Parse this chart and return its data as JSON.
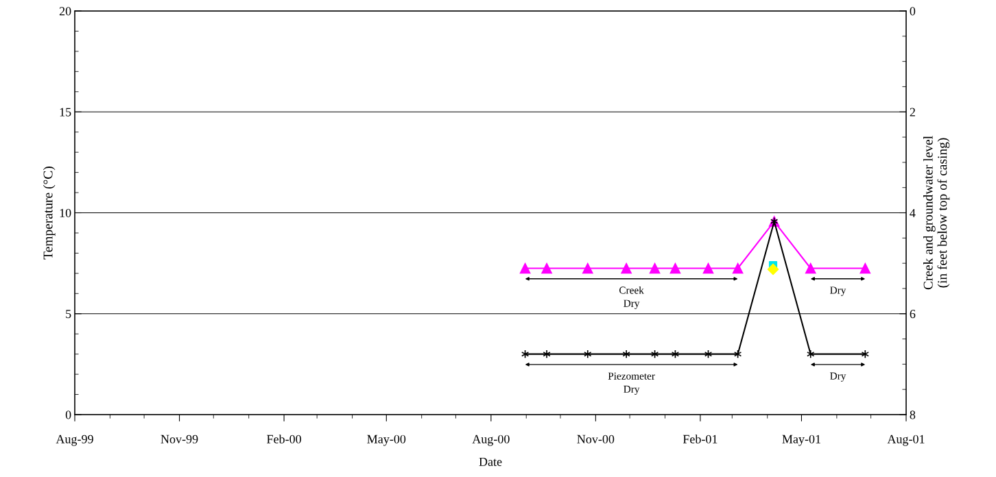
{
  "chart_data": {
    "type": "line",
    "xlabel": "Date",
    "ylabel": "Temperature (°C)",
    "y2label": "Creek and groundwater level\n(in feet below top of casing)",
    "xlim": [
      "1999-08-01",
      "2001-08-01"
    ],
    "xticks": [
      {
        "value": "1999-08-01",
        "label": "Aug-99"
      },
      {
        "value": "1999-11-01",
        "label": "Nov-99"
      },
      {
        "value": "2000-02-01",
        "label": "Feb-00"
      },
      {
        "value": "2000-05-01",
        "label": "May-00"
      },
      {
        "value": "2000-08-01",
        "label": "Aug-00"
      },
      {
        "value": "2000-11-01",
        "label": "Nov-00"
      },
      {
        "value": "2001-02-01",
        "label": "Feb-01"
      },
      {
        "value": "2001-05-01",
        "label": "May-01"
      },
      {
        "value": "2001-08-01",
        "label": "Aug-01"
      }
    ],
    "ylim": [
      0,
      20
    ],
    "yticks": [
      0,
      5,
      10,
      15,
      20
    ],
    "y2lim": [
      8,
      0
    ],
    "y2ticks": [
      0,
      2,
      4,
      6,
      8
    ],
    "grid": "y",
    "legend": false,
    "series": [
      {
        "axis": "y2",
        "color": "#ff00ff",
        "marker": "triangle",
        "line_style": "solid",
        "x": [
          "2000-08-31",
          "2000-09-19",
          "2000-10-25",
          "2000-11-28",
          "2000-12-23",
          "2001-01-10",
          "2001-02-08",
          "2001-03-06",
          "2001-04-07",
          "2001-05-09",
          "2001-06-26"
        ],
        "values": [
          5.1,
          5.1,
          5.1,
          5.1,
          5.1,
          5.1,
          5.1,
          5.1,
          4.17,
          5.1,
          5.1
        ]
      },
      {
        "axis": "y2",
        "color": "#000000",
        "marker": "cross",
        "line_style": "solid",
        "x": [
          "2000-08-31",
          "2000-09-19",
          "2000-10-25",
          "2000-11-28",
          "2000-12-23",
          "2001-01-10",
          "2001-02-08",
          "2001-03-06",
          "2001-04-07",
          "2001-05-09",
          "2001-06-26"
        ],
        "values": [
          6.8,
          6.8,
          6.8,
          6.8,
          6.8,
          6.8,
          6.8,
          6.8,
          4.17,
          6.8,
          6.8
        ]
      },
      {
        "type": "scatter",
        "color": "#00e5ee",
        "marker": "square",
        "x": [
          "2001-04-06"
        ],
        "values": [
          7.4
        ]
      },
      {
        "type": "scatter",
        "color": "#ffff00",
        "marker": "diamond",
        "x": [
          "2001-04-06"
        ],
        "values": [
          7.2
        ]
      }
    ],
    "annotations": [
      "Creek\nDry",
      "Piezometer\nDry",
      "Dry",
      "Dry"
    ]
  }
}
